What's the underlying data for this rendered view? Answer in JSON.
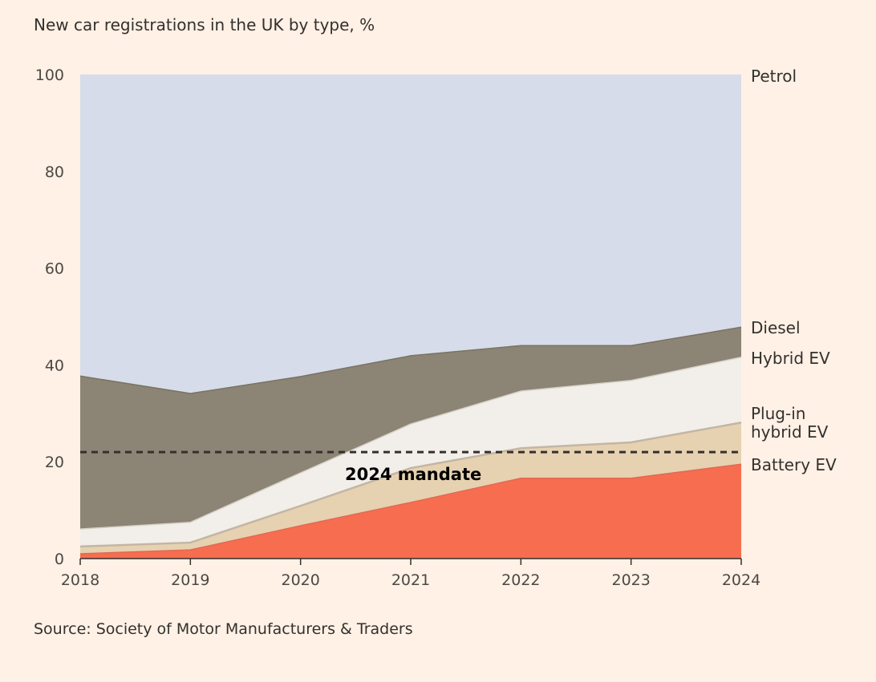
{
  "chart_data": {
    "type": "area",
    "stacked": true,
    "subtitle": "New car registrations in the UK by type, %",
    "source": "Source: Society of Motor Manufacturers & Traders",
    "x": [
      2018,
      2019,
      2020,
      2021,
      2022,
      2023,
      2024
    ],
    "x_tick_labels": [
      "2018",
      "2019",
      "2020",
      "2021",
      "2022",
      "2023",
      "2024"
    ],
    "ylim": [
      0,
      100
    ],
    "y_ticks": [
      0,
      20,
      40,
      60,
      80,
      100
    ],
    "series": [
      {
        "name": "Battery EV",
        "color": "#f76d4f",
        "values": [
          1.0,
          1.8,
          6.8,
          11.6,
          16.6,
          16.6,
          19.5
        ]
      },
      {
        "name": "Plug-in hybrid EV",
        "label_lines": [
          "Plug-in",
          "hybrid EV"
        ],
        "color": "#e6d1b1",
        "values": [
          1.5,
          1.5,
          4.1,
          7.1,
          6.2,
          7.4,
          8.6
        ]
      },
      {
        "name": "Hybrid EV",
        "color": "#f2efea",
        "values": [
          3.6,
          4.2,
          6.8,
          9.1,
          11.8,
          12.8,
          13.5
        ]
      },
      {
        "name": "Diesel",
        "color": "#8c8474",
        "values": [
          31.6,
          26.6,
          19.9,
          14.1,
          9.4,
          7.2,
          6.2
        ]
      },
      {
        "name": "Petrol",
        "color": "#d6dce9",
        "values": [
          62.3,
          65.9,
          62.4,
          58.1,
          56.0,
          56.0,
          52.2
        ]
      }
    ],
    "annotations": [
      {
        "label": "2024 mandate",
        "type": "hline",
        "value": 22,
        "style": "dashed"
      }
    ],
    "legend": "right-inline"
  }
}
